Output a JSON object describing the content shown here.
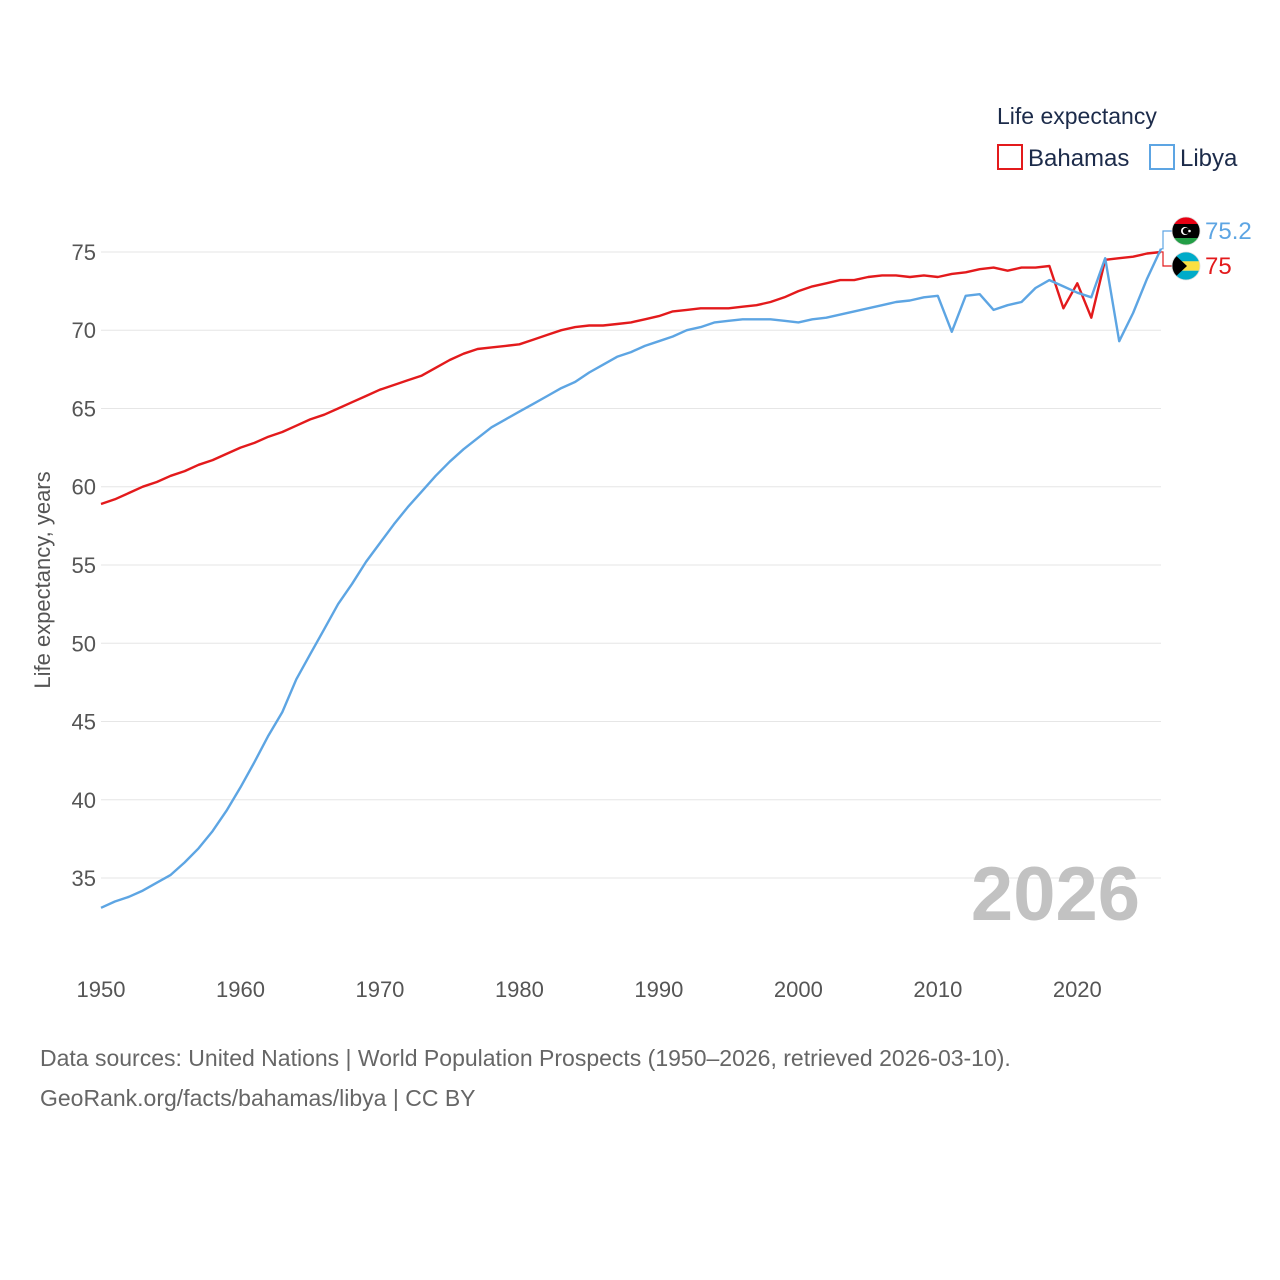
{
  "chart_data": {
    "type": "line",
    "title": "",
    "xlabel": "",
    "ylabel": "Life expectancy, years",
    "xlim": [
      1950,
      2026
    ],
    "ylim": [
      32,
      78
    ],
    "x_ticks": [
      1950,
      1960,
      1970,
      1980,
      1990,
      2000,
      2010,
      2020
    ],
    "y_ticks": [
      35,
      40,
      45,
      50,
      55,
      60,
      65,
      70,
      75
    ],
    "grid": true,
    "legend_title": "Life expectancy",
    "legend_position": "top-right",
    "year_label": "2026",
    "x": [
      1950,
      1951,
      1952,
      1953,
      1954,
      1955,
      1956,
      1957,
      1958,
      1959,
      1960,
      1961,
      1962,
      1963,
      1964,
      1965,
      1966,
      1967,
      1968,
      1969,
      1970,
      1971,
      1972,
      1973,
      1974,
      1975,
      1976,
      1977,
      1978,
      1979,
      1980,
      1981,
      1982,
      1983,
      1984,
      1985,
      1986,
      1987,
      1988,
      1989,
      1990,
      1991,
      1992,
      1993,
      1994,
      1995,
      1996,
      1997,
      1998,
      1999,
      2000,
      2001,
      2002,
      2003,
      2004,
      2005,
      2006,
      2007,
      2008,
      2009,
      2010,
      2011,
      2012,
      2013,
      2014,
      2015,
      2016,
      2017,
      2018,
      2019,
      2020,
      2021,
      2022,
      2023,
      2024,
      2025,
      2026
    ],
    "series": [
      {
        "name": "Bahamas",
        "color": "#e31a1c",
        "end_label": "75",
        "flag": "bahamas-flag",
        "values": [
          58.9,
          59.2,
          59.6,
          60.0,
          60.3,
          60.7,
          61.0,
          61.4,
          61.7,
          62.1,
          62.5,
          62.8,
          63.2,
          63.5,
          63.9,
          64.3,
          64.6,
          65.0,
          65.4,
          65.8,
          66.2,
          66.5,
          66.8,
          67.1,
          67.6,
          68.1,
          68.5,
          68.8,
          68.9,
          69.0,
          69.1,
          69.4,
          69.7,
          70.0,
          70.2,
          70.3,
          70.3,
          70.4,
          70.5,
          70.7,
          70.9,
          71.2,
          71.3,
          71.4,
          71.4,
          71.4,
          71.5,
          71.6,
          71.8,
          72.1,
          72.5,
          72.8,
          73.0,
          73.2,
          73.2,
          73.4,
          73.5,
          73.5,
          73.4,
          73.5,
          73.4,
          73.6,
          73.7,
          73.9,
          74.0,
          73.8,
          74.0,
          74.0,
          74.1,
          71.4,
          73.0,
          70.8,
          74.5,
          74.6,
          74.7,
          74.9,
          75.0
        ]
      },
      {
        "name": "Libya",
        "color": "#5da5e3",
        "end_label": "75.2",
        "flag": "libya-flag",
        "values": [
          33.1,
          33.5,
          33.8,
          34.2,
          34.7,
          35.2,
          36.0,
          36.9,
          38.0,
          39.3,
          40.8,
          42.4,
          44.1,
          45.6,
          47.7,
          49.3,
          50.9,
          52.5,
          53.8,
          55.2,
          56.4,
          57.6,
          58.7,
          59.7,
          60.7,
          61.6,
          62.4,
          63.1,
          63.8,
          64.3,
          64.8,
          65.3,
          65.8,
          66.3,
          66.7,
          67.3,
          67.8,
          68.3,
          68.6,
          69.0,
          69.3,
          69.6,
          70.0,
          70.2,
          70.5,
          70.6,
          70.7,
          70.7,
          70.7,
          70.6,
          70.5,
          70.7,
          70.8,
          71.0,
          71.2,
          71.4,
          71.6,
          71.8,
          71.9,
          72.1,
          72.2,
          69.9,
          72.2,
          72.3,
          71.3,
          71.6,
          71.8,
          72.7,
          73.2,
          72.8,
          72.4,
          72.1,
          74.6,
          69.3,
          71.1,
          73.3,
          75.2
        ]
      }
    ]
  },
  "footer": {
    "line1": "Data sources: United Nations | World Population Prospects (1950–2026, retrieved 2026-03-10).",
    "line2": "GeoRank.org/facts/bahamas/libya | CC BY"
  }
}
